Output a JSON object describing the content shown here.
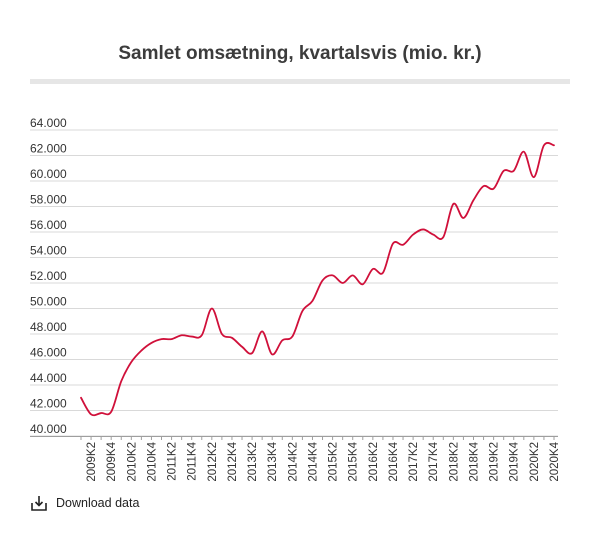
{
  "chart_data": {
    "type": "line",
    "title": "Samlet omsætning, kvartalsvis (mio. kr.)",
    "xlabel": "",
    "ylabel": "",
    "ylim": [
      40000,
      64000
    ],
    "grid": true,
    "y_ticks": [
      {
        "value": 64000,
        "label": "64.000"
      },
      {
        "value": 62000,
        "label": "62.000"
      },
      {
        "value": 60000,
        "label": "60.000"
      },
      {
        "value": 58000,
        "label": "58.000"
      },
      {
        "value": 56000,
        "label": "56.000"
      },
      {
        "value": 54000,
        "label": "54.000"
      },
      {
        "value": 52000,
        "label": "52.000"
      },
      {
        "value": 50000,
        "label": "50.000"
      },
      {
        "value": 48000,
        "label": "48.000"
      },
      {
        "value": 46000,
        "label": "46.000"
      },
      {
        "value": 44000,
        "label": "44.000"
      },
      {
        "value": 42000,
        "label": "42.000"
      },
      {
        "value": 40000,
        "label": "40.000"
      }
    ],
    "x": [
      "2009K1",
      "2009K2",
      "2009K3",
      "2009K4",
      "2010K1",
      "2010K2",
      "2010K3",
      "2010K4",
      "2011K1",
      "2011K2",
      "2011K3",
      "2011K4",
      "2012K1",
      "2012K2",
      "2012K3",
      "2012K4",
      "2013K1",
      "2013K2",
      "2013K3",
      "2013K4",
      "2014K1",
      "2014K2",
      "2014K3",
      "2014K4",
      "2015K1",
      "2015K2",
      "2015K3",
      "2015K4",
      "2016K1",
      "2016K2",
      "2016K3",
      "2016K4",
      "2017K1",
      "2017K2",
      "2017K3",
      "2017K4",
      "2018K1",
      "2018K2",
      "2018K3",
      "2018K4",
      "2019K1",
      "2019K2",
      "2019K3",
      "2019K4",
      "2020K1",
      "2020K2",
      "2020K3",
      "2020K4"
    ],
    "x_tick_labels": [
      "2009K2",
      "2009K4",
      "2010K2",
      "2010K4",
      "2011K2",
      "2011K4",
      "2012K2",
      "2012K4",
      "2013K2",
      "2013K4",
      "2014K2",
      "2014K4",
      "2015K2",
      "2015K4",
      "2016K2",
      "2016K4",
      "2017K2",
      "2017K4",
      "2018K2",
      "2018K4",
      "2019K2",
      "2019K4",
      "2020K2",
      "2020K4"
    ],
    "series": [
      {
        "color": "#d0103a",
        "values": [
          43000,
          41700,
          41800,
          41900,
          44300,
          45800,
          46700,
          47300,
          47600,
          47600,
          47900,
          47800,
          47900,
          50000,
          48000,
          47700,
          47000,
          46500,
          48200,
          46400,
          47500,
          47800,
          49800,
          50600,
          52200,
          52600,
          52000,
          52600,
          51900,
          53100,
          52800,
          55100,
          55000,
          55800,
          56200,
          55800,
          55600,
          58200,
          57100,
          58500,
          59600,
          59400,
          60800,
          60800,
          62300,
          60300,
          62800,
          62800
        ]
      }
    ]
  },
  "download": {
    "label": "Download data",
    "icon": "download-icon"
  }
}
